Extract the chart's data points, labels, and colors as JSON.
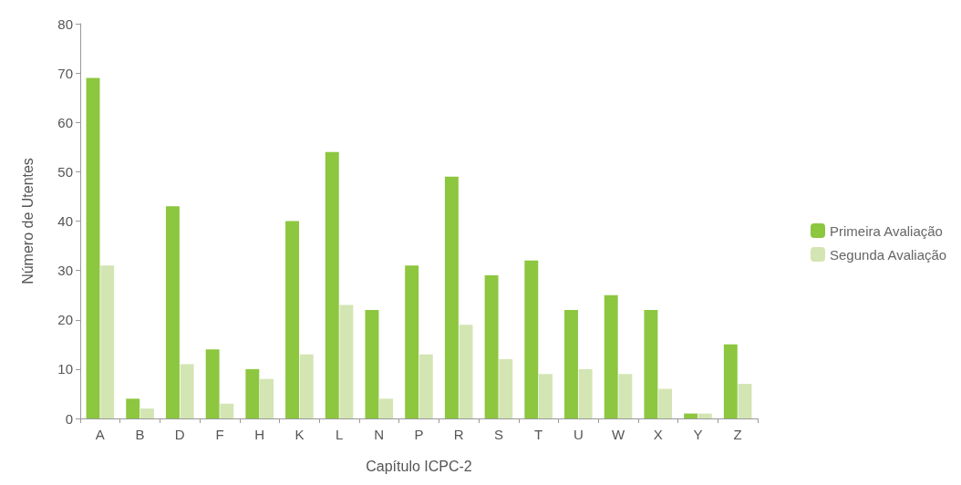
{
  "chart_data": {
    "type": "bar",
    "xlabel": "Capítulo ICPC-2",
    "ylabel": "Número de Utentes",
    "categories": [
      "A",
      "B",
      "D",
      "F",
      "H",
      "K",
      "L",
      "N",
      "P",
      "R",
      "S",
      "T",
      "U",
      "W",
      "X",
      "Y",
      "Z"
    ],
    "series": [
      {
        "name": "Primeira Avaliação",
        "color": "#8dc63f",
        "values": [
          69,
          4,
          43,
          14,
          10,
          40,
          54,
          22,
          31,
          49,
          29,
          32,
          22,
          25,
          22,
          1,
          15
        ]
      },
      {
        "name": "Segunda Avaliação",
        "color": "#d3e5b3",
        "values": [
          31,
          2,
          11,
          3,
          8,
          13,
          23,
          4,
          13,
          19,
          12,
          9,
          10,
          9,
          6,
          1,
          7
        ]
      }
    ],
    "ylim": [
      0,
      80
    ],
    "yticks": [
      0,
      10,
      20,
      30,
      40,
      50,
      60,
      70,
      80
    ],
    "grid": false,
    "legend": "right"
  }
}
